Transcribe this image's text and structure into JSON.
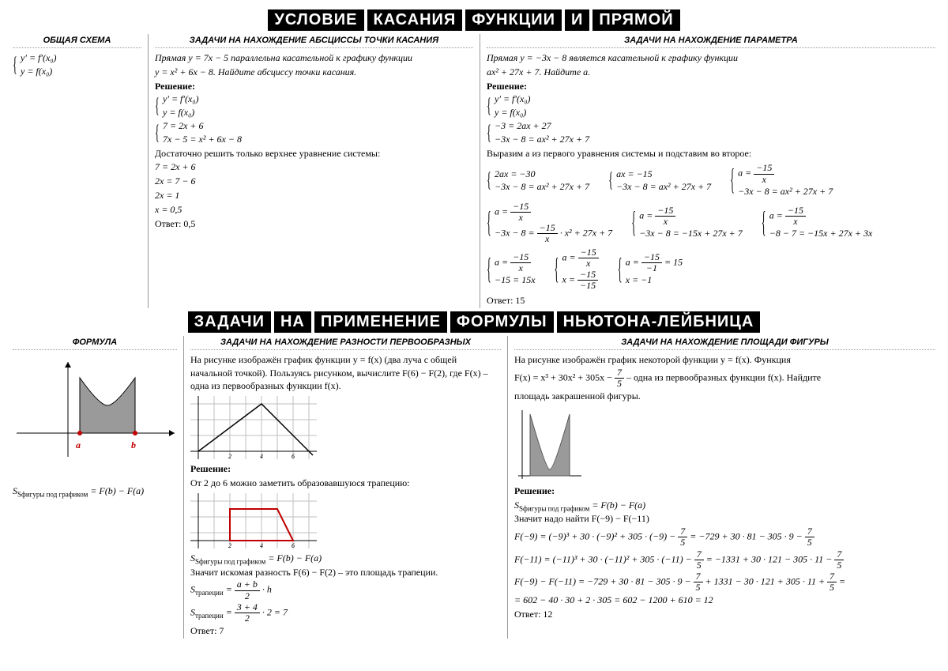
{
  "banner1_words": [
    "Условие",
    "касания",
    "функции",
    "и",
    "прямой"
  ],
  "banner2_words": [
    "Задачи",
    "на",
    "применение",
    "формулы",
    "Ньютона-Лейбница"
  ],
  "sec1": {
    "col1": {
      "head": "Общая схема",
      "sys1": "y′ = f′(x₀)",
      "sys2": "y = f(x₀)"
    },
    "col2": {
      "head": "Задачи на нахождение абсциссы точки касания",
      "problem1": "Прямая y = 7x − 5 параллельна касательной к графику функции",
      "problem2": "y = x² + 6x − 8. Найдите абсциссу точки касания.",
      "resh": "Решение:",
      "s1": "y′ = f′(x₀)",
      "s2": "y = f(x₀)",
      "s3": "7 = 2x + 6",
      "s4": "7x − 5 = x² + 6x − 8",
      "note": "Достаточно решить только верхнее уравнение системы:",
      "l1": "7 = 2x + 6",
      "l2": "2x = 7 − 6",
      "l3": "2x = 1",
      "l4": "x = 0,5",
      "ans": "Ответ: 0,5"
    },
    "col3": {
      "head": "Задачи на нахождение параметра",
      "p1": "Прямая y = −3x − 8 является касательной к графику функции",
      "p2": "ax² + 27x + 7. Найдите a.",
      "resh": "Решение:",
      "s1": "y′ = f′(x₀)",
      "s2": "y = f(x₀)",
      "s3": "−3 = 2ax + 27",
      "s4": "−3x − 8 = ax² + 27x + 7",
      "note": "Выразим a из первого уравнения системы и подставим во второе:",
      "r1a1": "2ax = −30",
      "r1a2": "−3x − 8 = ax² + 27x + 7",
      "r1b1": "ax = −15",
      "r1b2": "−3x − 8 = ax² + 27x + 7",
      "r1c2": "−3x − 8 = ax² + 27x + 7",
      "r2b2": "−3x − 8 = −15x + 27x + 7",
      "r2c2": "−8 − 7 = −15x + 27x + 3x",
      "r3a2": "−15 = 15x",
      "r3c1b": "x = −1",
      "ans": "Ответ: 15"
    }
  },
  "sec2": {
    "col1": {
      "head": "Формула",
      "a": "a",
      "b": "b",
      "formula_lhs": "Sфигуры под графиком",
      "formula_rhs": "= F(b) − F(a)"
    },
    "col2": {
      "head": "Задачи на нахождение разности первообразных",
      "p1": "На рисунке изображён график функции y = f(x) (два луча с общей начальной точкой). Пользуясь рисунком, вычислите F(6) − F(2), где F(x) – одна из первообразных функции f(x).",
      "resh": "Решение:",
      "note": "От 2 до 6 можно заметить образовавшуюся трапецию:",
      "eq1l": "Sфигуры под графиком",
      "eq1r": "= F(b) − F(a)",
      "eq2": "Значит искомая разность F(6) − F(2) – это площадь трапеции.",
      "tr_lhs": "Sтрапеции =",
      "tr2_lhs": "Sтрапеции =",
      "tr2_end": " · 2 = 7",
      "ans": "Ответ: 7"
    },
    "col3": {
      "head": "Задачи на нахождение площади фигуры",
      "p1a": "На рисунке изображён график некоторой функции y = f(x). Функция",
      "p1b_pre": "F(x) = x³ + 30x² + 305x − ",
      "p1b_post": " – одна из первообразных функции f(x). Найдите",
      "p1c": "площадь закрашенной фигуры.",
      "resh": "Решение:",
      "eq1l": "Sфигуры под графиком",
      "eq1r": "= F(b) − F(a)",
      "eq2": "Значит надо найти F(−9) − F(−11)",
      "fa_pre": "F(−9) = (−9)³ + 30 · (−9)² + 305 · (−9) − ",
      "fa_post": " = −729 + 30 · 81 − 305 · 9 − ",
      "fb_pre": "F(−11) = (−11)³ + 30 · (−11)² + 305 · (−11) − ",
      "fb_post": " = −1331 + 30 · 121 − 305 · 11 − ",
      "fc_pre": "F(−9) − F(−11) = −729 + 30 · 81 − 305 · 9 − ",
      "fc_mid": " + 1331 − 30 · 121 + 305 · 11 + ",
      "fc_end": " =",
      "fd": "= 602 − 40 · 30 + 2 · 305 = 602 − 1200 + 610 = 12",
      "ans": "Ответ: 12"
    }
  },
  "colors": {
    "red": "#c00000",
    "grid": "#bfbfbf",
    "fill": "#9a9a9a"
  }
}
